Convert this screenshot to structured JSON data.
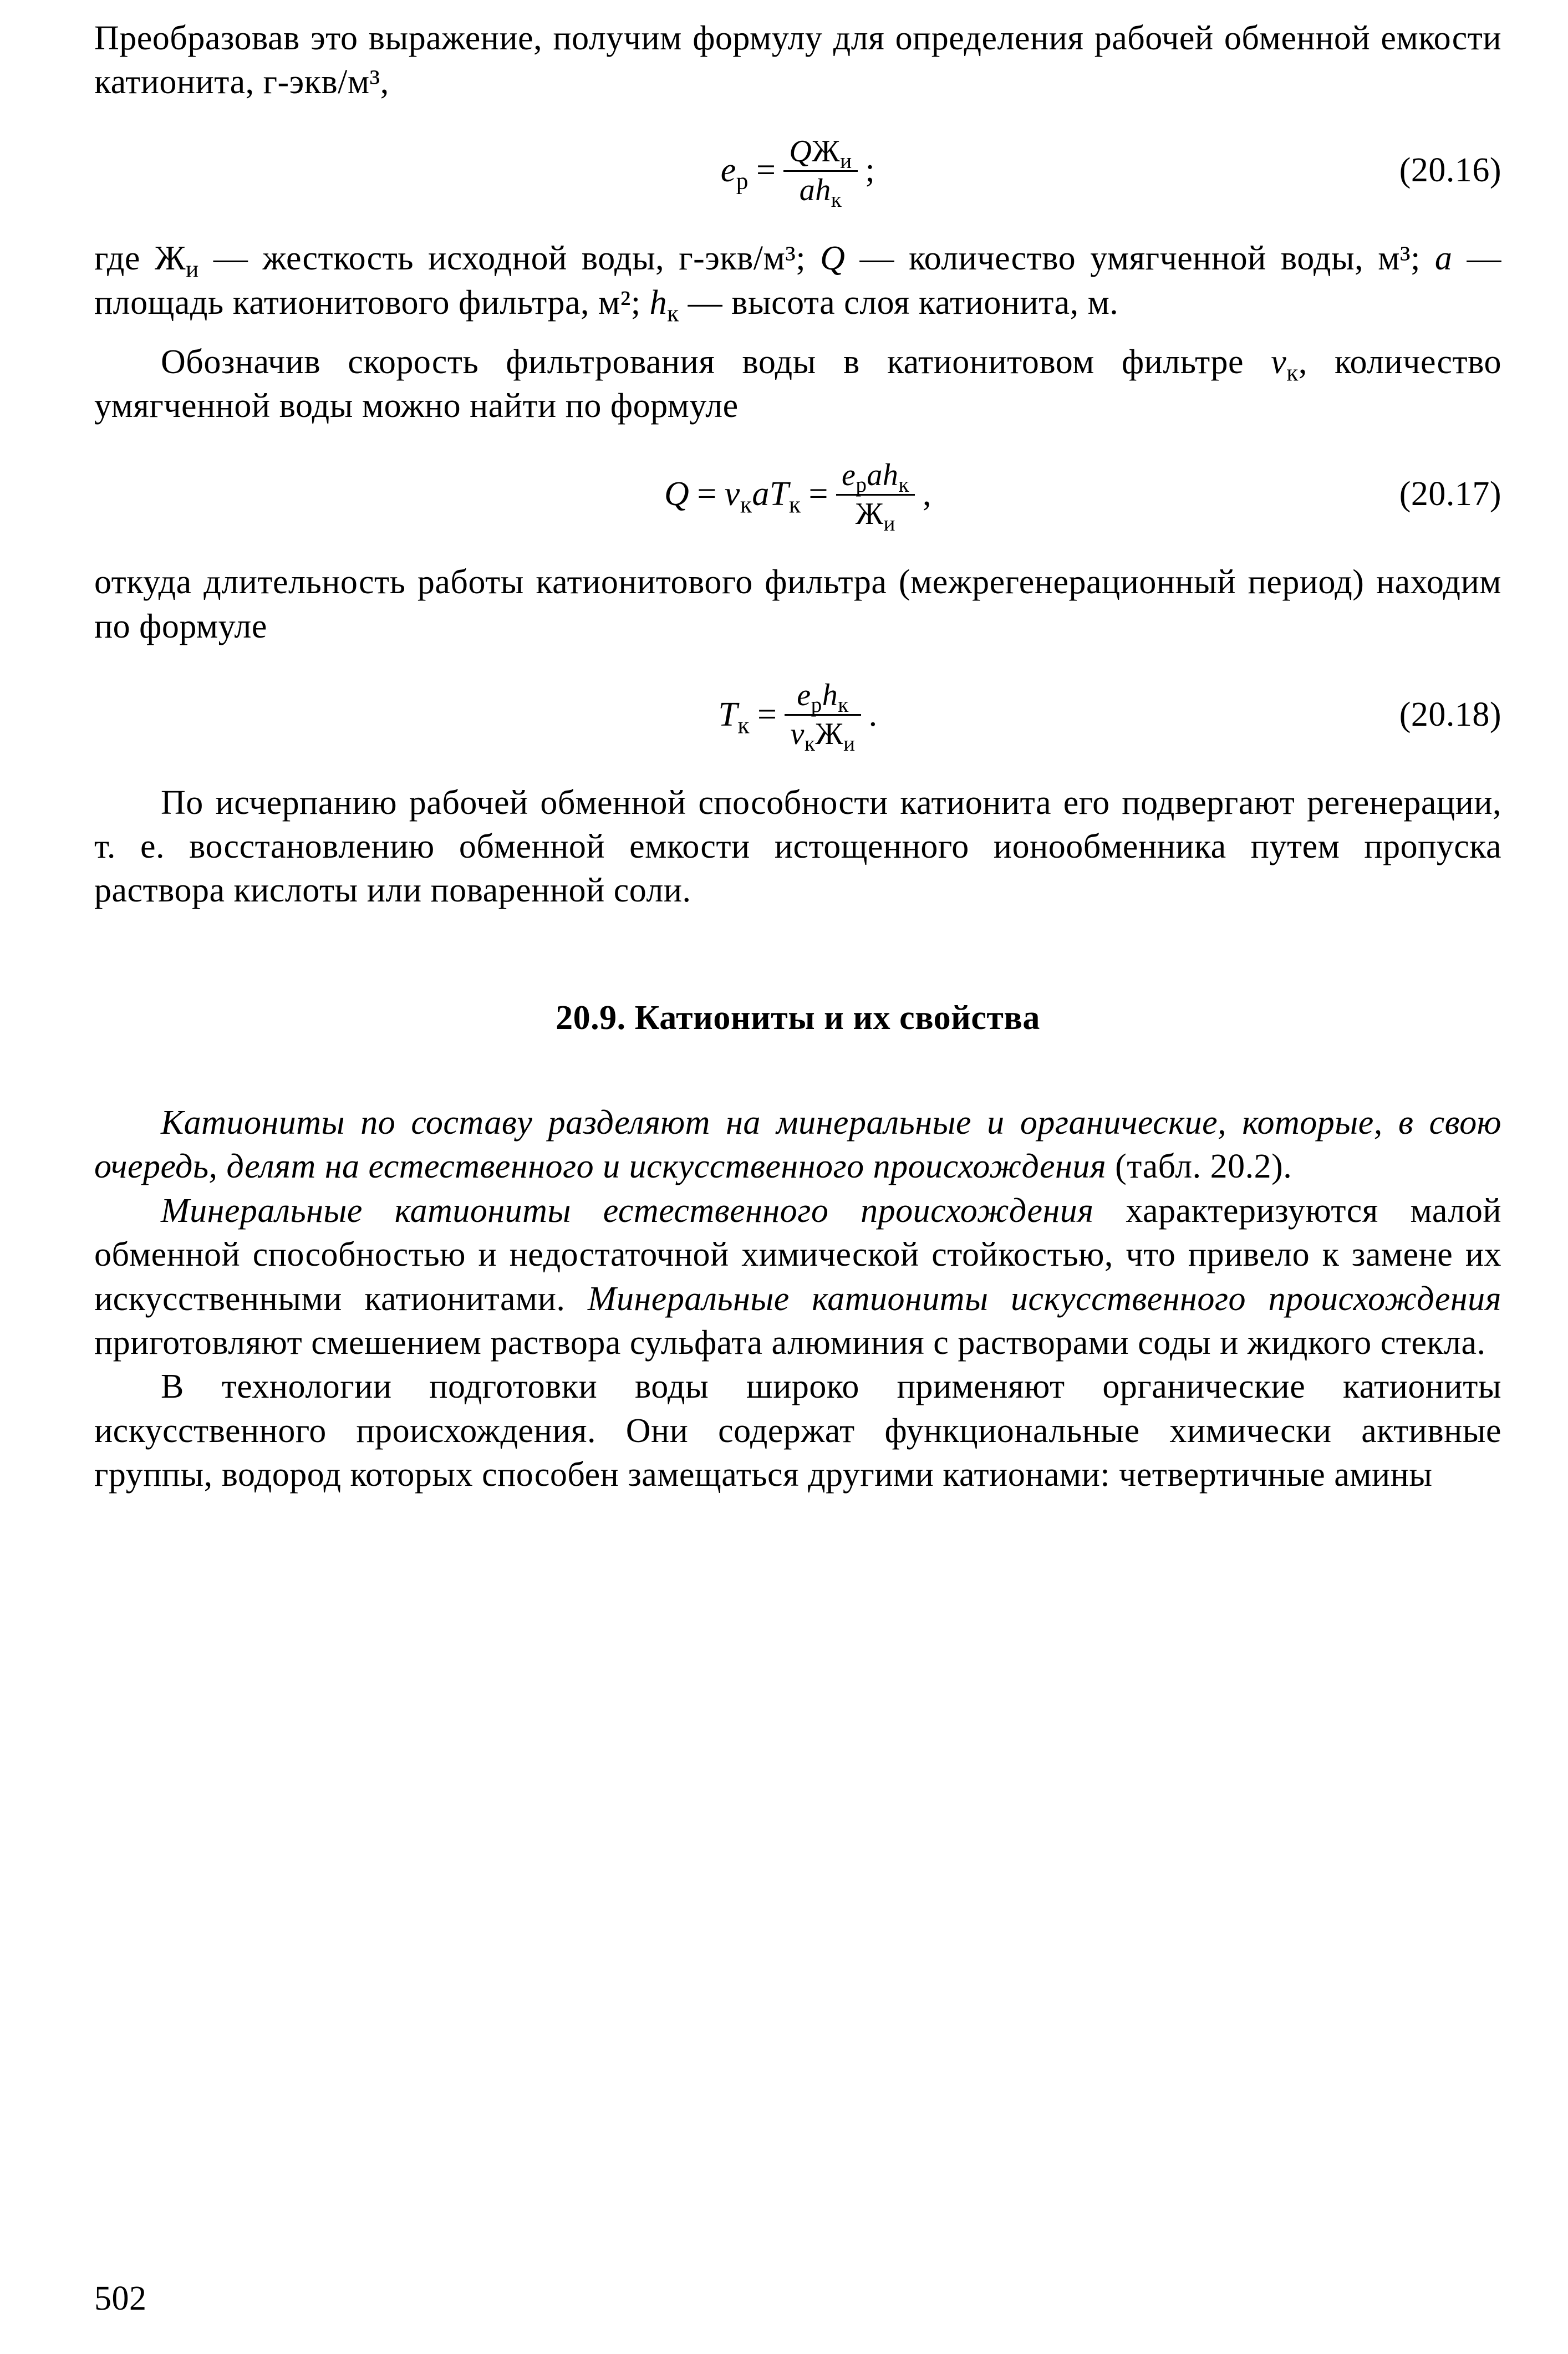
{
  "para1": "Преобразовав это выражение, получим формулу для определения рабочей обменной емкости катионита, г-экв/м³,",
  "eq1": {
    "lhs": "e",
    "lhs_sub": "р",
    "eq": "=",
    "num_Q": "Q",
    "num_Zh": "Ж",
    "num_Zh_sub": "и",
    "den_a": "a",
    "den_h": "h",
    "den_h_sub": "к",
    "semi": ";",
    "num": "(20.16)"
  },
  "para2_a": "где Ж",
  "para2_a_sub": "и",
  "para2_b": " — жесткость исходной воды, г-экв/м³; ",
  "para2_Q": "Q",
  "para2_c": " — количество умягченной воды, м³; ",
  "para2_a2": "a",
  "para2_d": " — площадь катионитового фильтра, м²; ",
  "para2_h": "h",
  "para2_h_sub": "к",
  "para2_e": " — высота слоя катионита, м.",
  "para3_a": "Обозначив скорость фильтрования воды в катионитовом фильтре ",
  "para3_v": "v",
  "para3_v_sub": "к",
  "para3_b": ", количество умягченной воды можно найти по формуле",
  "eq2": {
    "Q": "Q",
    "eq": "=",
    "v": "v",
    "v_sub": "к",
    "a": "a",
    "T": "T",
    "T_sub": "к",
    "eq2": "=",
    "num_e": "e",
    "num_e_sub": "р",
    "num_a": "a",
    "num_h": "h",
    "num_h_sub": "к",
    "den_Zh": "Ж",
    "den_Zh_sub": "и",
    "comma": ",",
    "num": "(20.17)"
  },
  "para4": "откуда длительность работы катионитового фильтра (межрегенерационный период) находим по формуле",
  "eq3": {
    "T": "T",
    "T_sub": "к",
    "eq": "=",
    "num_e": "e",
    "num_e_sub": "р",
    "num_h": "h",
    "num_h_sub": "к",
    "den_v": "v",
    "den_v_sub": "к",
    "den_Zh": "Ж",
    "den_Zh_sub": "и",
    "dot": ".",
    "num": "(20.18)"
  },
  "para5": "По исчерпанию рабочей обменной способности катионита его подвергают регенерации, т. е. восстановлению обменной емкости истощенного ионообменника путем пропуска раствора кислоты или поваренной соли.",
  "heading": "20.9. Катиониты и их свойства",
  "para6_i": "Катиониты по составу разделяют на минеральные и органические, которые, в свою очередь, делят на естественного и искусственного происхождения",
  "para6_b": " (табл. 20.2).",
  "para7_i1": "Минеральные катиониты естественного происхождения",
  "para7_a": " характеризуются малой обменной способностью и недостаточной химической стойкостью, что привело к замене их искусственными катионитами. ",
  "para7_i2": "Минеральные катиониты искусственного происхождения",
  "para7_b": " приготовляют смешением раствора сульфата алюминия с растворами соды и жидкого стекла.",
  "para8": "В технологии подготовки воды широко применяют органические катиониты искусственного происхождения. Они содержат функциональные химически активные группы, водород которых способен замещаться другими катионами: четвертичные амины",
  "pagenum": "502"
}
